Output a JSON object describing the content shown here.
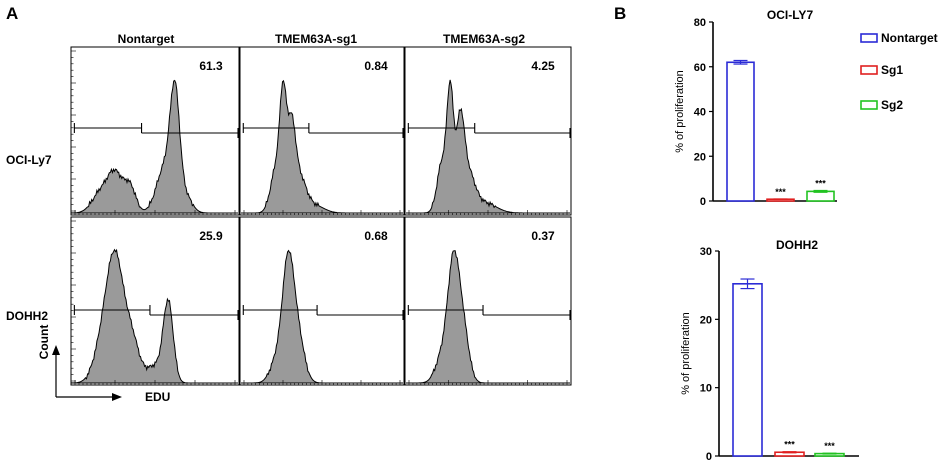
{
  "panels": {
    "a_letter": "A",
    "b_letter": "B"
  },
  "flow": {
    "columns": [
      "Nontarget",
      "TMEM63A-sg1",
      "TMEM63A-sg2"
    ],
    "rows": [
      "OCI-Ly7",
      "DOHH2"
    ],
    "percentages": [
      [
        "61.3",
        "0.84",
        "4.25"
      ],
      [
        "25.9",
        "0.68",
        "0.37"
      ]
    ],
    "y_axis_label": "Count",
    "x_axis_label": "EDU",
    "fill_color": "#9a9a9a"
  },
  "chart_data": [
    {
      "type": "bar",
      "title": "OCI-LY7",
      "categories": [
        "Nontarget",
        "Sg1",
        "Sg2"
      ],
      "values": [
        62,
        0.8,
        4.3
      ],
      "errors": [
        0.8,
        0.1,
        0.4
      ],
      "significance": [
        "",
        "***",
        "***"
      ],
      "ylabel": "% of proliferation",
      "xlabel": "",
      "ylim": [
        0,
        80
      ],
      "yticks": [
        "0",
        "20",
        "40",
        "60",
        "80"
      ],
      "colors": [
        "#2b2bd6",
        "#e02020",
        "#22c322"
      ],
      "legend": [
        "Nontarget",
        "Sg1",
        "Sg2"
      ],
      "legend_position": "right"
    },
    {
      "type": "bar",
      "title": "DOHH2",
      "categories": [
        "Nontarget",
        "Sg1",
        "Sg2"
      ],
      "values": [
        25.2,
        0.55,
        0.35
      ],
      "errors": [
        0.7,
        0.08,
        0.06
      ],
      "significance": [
        "",
        "***",
        "***"
      ],
      "ylabel": "% of proliferation",
      "xlabel": "",
      "ylim": [
        0,
        30
      ],
      "yticks": [
        "0",
        "10",
        "20",
        "30"
      ],
      "colors": [
        "#2b2bd6",
        "#e02020",
        "#22c322"
      ]
    }
  ]
}
